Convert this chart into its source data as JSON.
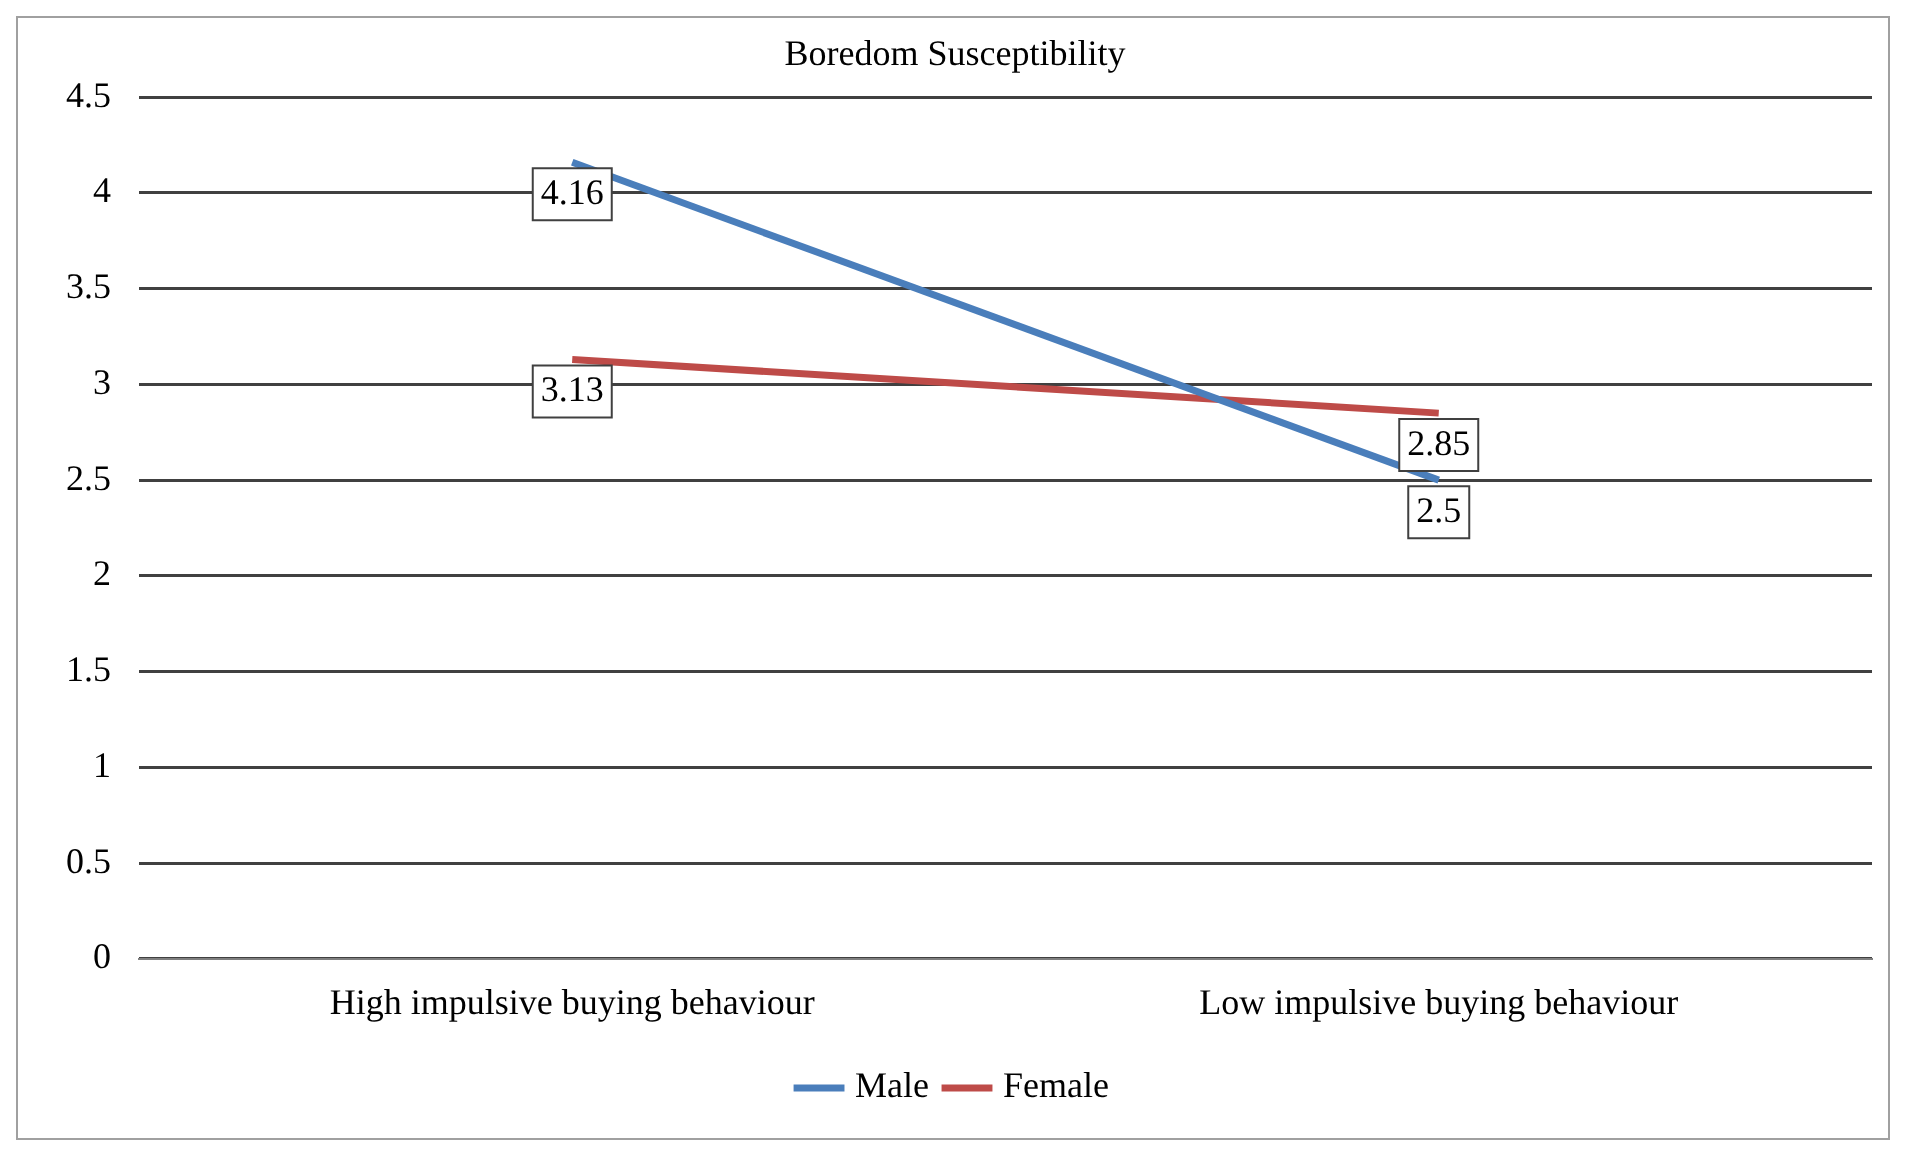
{
  "chart_data": {
    "type": "line",
    "title": "Boredom Susceptibility",
    "categories": [
      "High impulsive buying behaviour",
      "Low impulsive buying behaviour"
    ],
    "series": [
      {
        "name": "Male",
        "color": "#4a7ebb",
        "values": [
          4.16,
          2.5
        ]
      },
      {
        "name": "Female",
        "color": "#be4b48",
        "values": [
          3.13,
          2.85
        ]
      }
    ],
    "ylim": [
      0,
      4.5
    ],
    "yticks": [
      0,
      0.5,
      1,
      1.5,
      2,
      2.5,
      3,
      3.5,
      4,
      4.5
    ],
    "grid": "y",
    "legend": "bottom",
    "marker": "none",
    "data_labels": true
  }
}
